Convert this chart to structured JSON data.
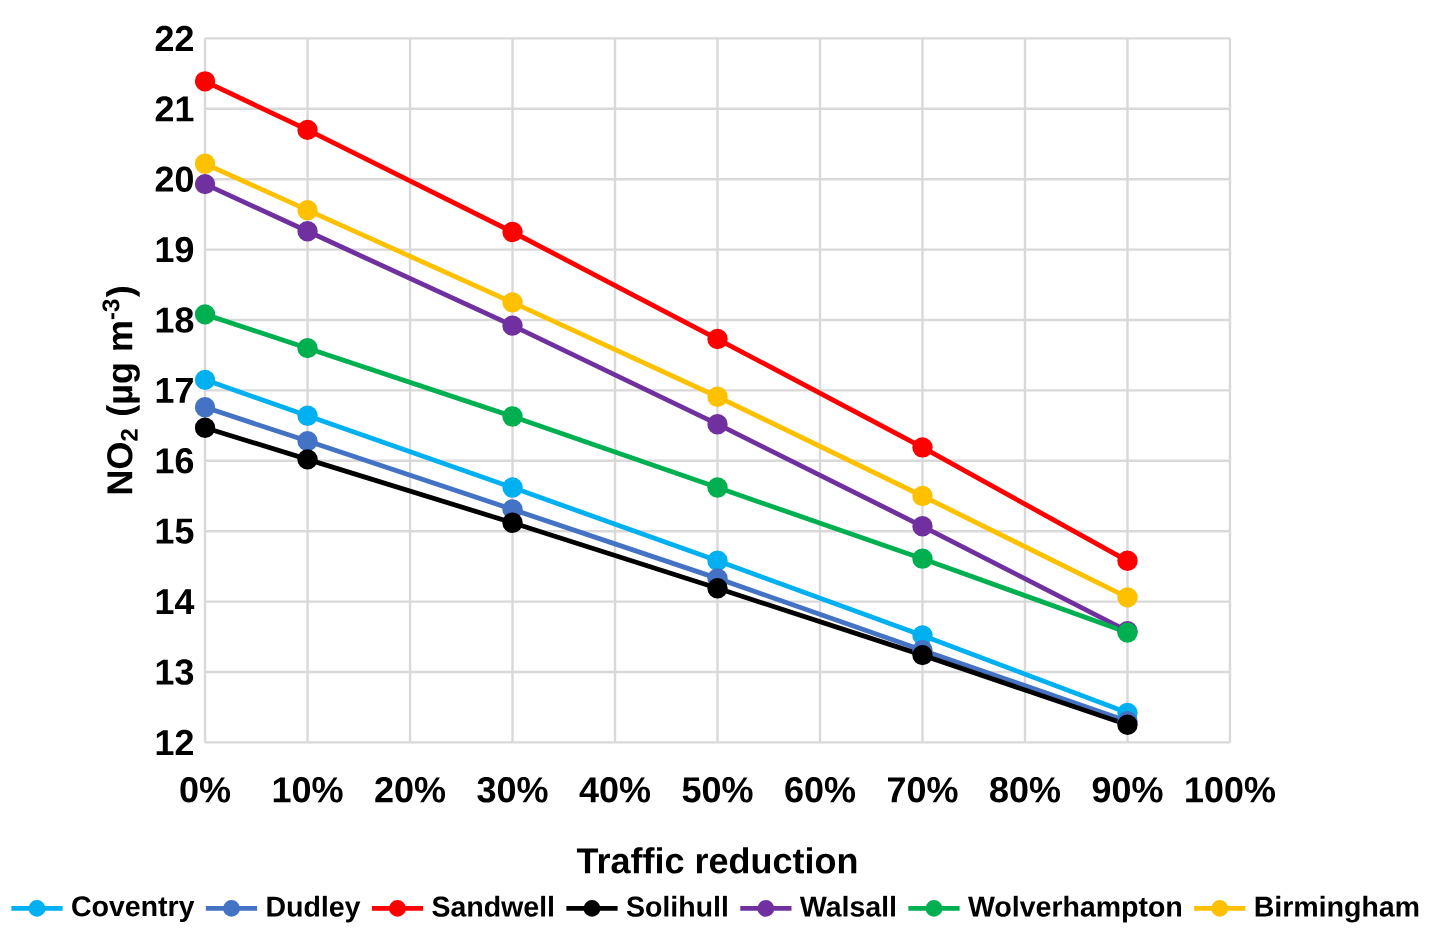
{
  "chart_data": {
    "type": "line",
    "xlabel": "Traffic reduction",
    "ylabel": "NO$_{2}$ (µg m$^{-3}$)",
    "x": [
      0,
      10,
      30,
      50,
      70,
      90
    ],
    "series": [
      {
        "name": "Coventry",
        "color": "#00b0f0",
        "values": [
          17.15,
          16.64,
          15.62,
          14.58,
          13.52,
          12.42
        ]
      },
      {
        "name": "Dudley",
        "color": "#4472c4",
        "values": [
          16.76,
          16.28,
          15.31,
          14.33,
          13.31,
          12.3
        ]
      },
      {
        "name": "Sandwell",
        "color": "#ff0000",
        "values": [
          21.39,
          20.7,
          19.25,
          17.73,
          16.19,
          14.58
        ]
      },
      {
        "name": "Solihull",
        "color": "#000000",
        "values": [
          16.47,
          16.02,
          15.12,
          14.19,
          13.24,
          12.25
        ]
      },
      {
        "name": "Walsall",
        "color": "#7030a0",
        "values": [
          19.93,
          19.26,
          17.92,
          16.52,
          15.07,
          13.58
        ]
      },
      {
        "name": "Wolverhampton",
        "color": "#00b050",
        "values": [
          18.08,
          17.6,
          16.63,
          15.62,
          14.61,
          13.56
        ]
      },
      {
        "name": "Birmingham",
        "color": "#ffc000",
        "values": [
          20.22,
          19.56,
          18.25,
          16.91,
          15.5,
          14.06
        ]
      }
    ],
    "xlim": [
      0,
      100
    ],
    "xticks": [
      {
        "value": 0,
        "label": "0%"
      },
      {
        "value": 10,
        "label": "10%"
      },
      {
        "value": 20,
        "label": "20%"
      },
      {
        "value": 30,
        "label": "30%"
      },
      {
        "value": 40,
        "label": "40%"
      },
      {
        "value": 50,
        "label": "50%"
      },
      {
        "value": 60,
        "label": "60%"
      },
      {
        "value": 70,
        "label": "70%"
      },
      {
        "value": 80,
        "label": "80%"
      },
      {
        "value": 90,
        "label": "90%"
      },
      {
        "value": 100,
        "label": "100%"
      }
    ],
    "ylim": [
      12,
      22
    ],
    "yticks": [
      12,
      13,
      14,
      15,
      16,
      17,
      18,
      19,
      20,
      21,
      22
    ],
    "grid": true,
    "legend": "bottom",
    "marker": "circle",
    "line_style": "solid"
  }
}
